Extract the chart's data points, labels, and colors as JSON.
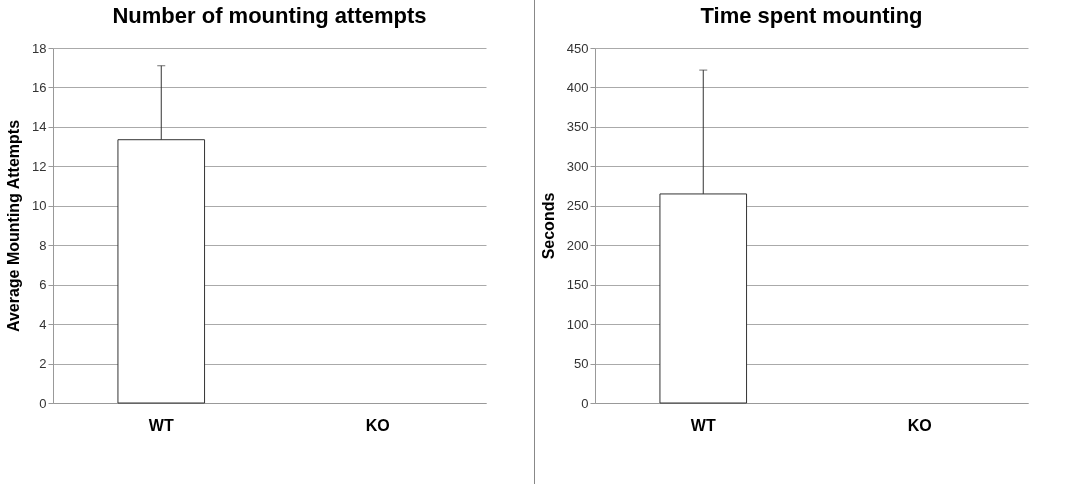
{
  "chart_data": [
    {
      "type": "bar",
      "title": "Number of mounting attempts",
      "ylabel": "Average Mounting Attempts",
      "categories": [
        "WT",
        "KO"
      ],
      "values": [
        13.35,
        0
      ],
      "errors": [
        [
          13.35,
          17.1
        ],
        null
      ],
      "color": "#ffffff",
      "ylim": [
        0,
        18
      ],
      "yticks": [
        0,
        2,
        4,
        6,
        8,
        10,
        12,
        14,
        16,
        18
      ],
      "grid": "y"
    },
    {
      "type": "bar",
      "title": "Time spent mounting",
      "ylabel": "Seconds",
      "categories": [
        "WT",
        "KO"
      ],
      "values": [
        265,
        0
      ],
      "errors": [
        [
          265,
          422
        ],
        null
      ],
      "color": "#ffffff",
      "ylim": [
        0,
        450
      ],
      "yticks": [
        0,
        50,
        100,
        150,
        200,
        250,
        300,
        350,
        400,
        450
      ],
      "grid": "y"
    }
  ]
}
